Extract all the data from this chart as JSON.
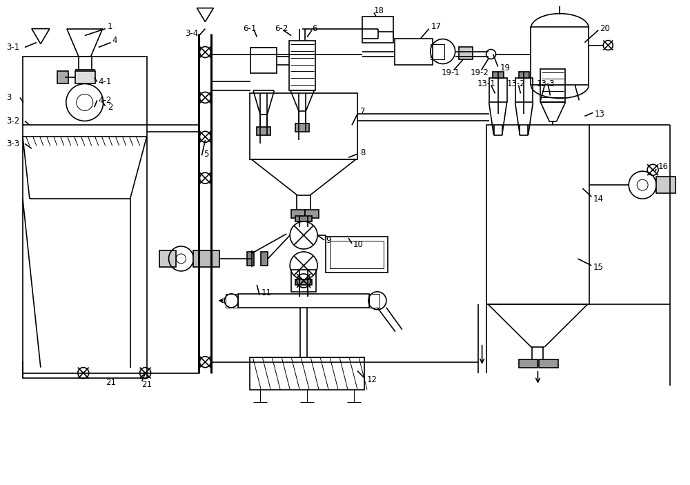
{
  "bg_color": "#ffffff",
  "lc": "#000000",
  "lw": 1.2,
  "tlw": 0.7,
  "thk": 2.2,
  "fw": 10.0,
  "fh": 7.03
}
